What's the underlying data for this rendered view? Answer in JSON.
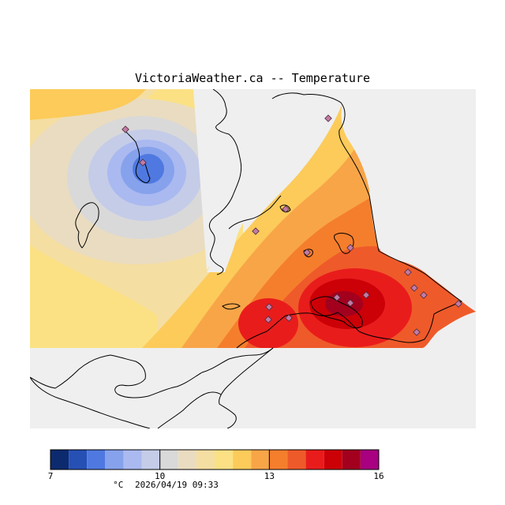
{
  "title": "VictoriaWeather.ca -- Temperature",
  "legend": {
    "min": 7,
    "max": 16,
    "tick_labels": [
      "7",
      "10",
      "13",
      "16"
    ],
    "tick_values": [
      7,
      10,
      13,
      16
    ],
    "unit": "°C",
    "timestamp": "2026/04/19 09:33",
    "bins": [
      {
        "from": 7.0,
        "to": 7.5,
        "color": "#0c2a6e"
      },
      {
        "from": 7.5,
        "to": 8.0,
        "color": "#2750b5"
      },
      {
        "from": 8.0,
        "to": 8.5,
        "color": "#4f79e0"
      },
      {
        "from": 8.5,
        "to": 9.0,
        "color": "#86a2ec"
      },
      {
        "from": 9.0,
        "to": 9.5,
        "color": "#aab9f0"
      },
      {
        "from": 9.5,
        "to": 10.0,
        "color": "#c4cce8"
      },
      {
        "from": 10.0,
        "to": 10.5,
        "color": "#d9d9d9"
      },
      {
        "from": 10.5,
        "to": 11.0,
        "color": "#eadcc0"
      },
      {
        "from": 11.0,
        "to": 11.5,
        "color": "#f5dea2"
      },
      {
        "from": 11.5,
        "to": 12.0,
        "color": "#fbe184"
      },
      {
        "from": 12.0,
        "to": 12.5,
        "color": "#fccb5a"
      },
      {
        "from": 12.5,
        "to": 13.0,
        "color": "#f8a548"
      },
      {
        "from": 13.0,
        "to": 13.5,
        "color": "#f57e2c"
      },
      {
        "from": 13.5,
        "to": 14.0,
        "color": "#ef5a2a"
      },
      {
        "from": 14.0,
        "to": 14.5,
        "color": "#e91c1c"
      },
      {
        "from": 14.5,
        "to": 15.0,
        "color": "#cc0007"
      },
      {
        "from": 15.0,
        "to": 15.5,
        "color": "#a3001e"
      },
      {
        "from": 15.5,
        "to": 16.0,
        "color": "#a80080"
      }
    ]
  },
  "colors": {
    "background": "#efefef",
    "coastline": "#000000",
    "land_unshaded": "#ffffff",
    "station_marker": "#c37aa6"
  }
}
